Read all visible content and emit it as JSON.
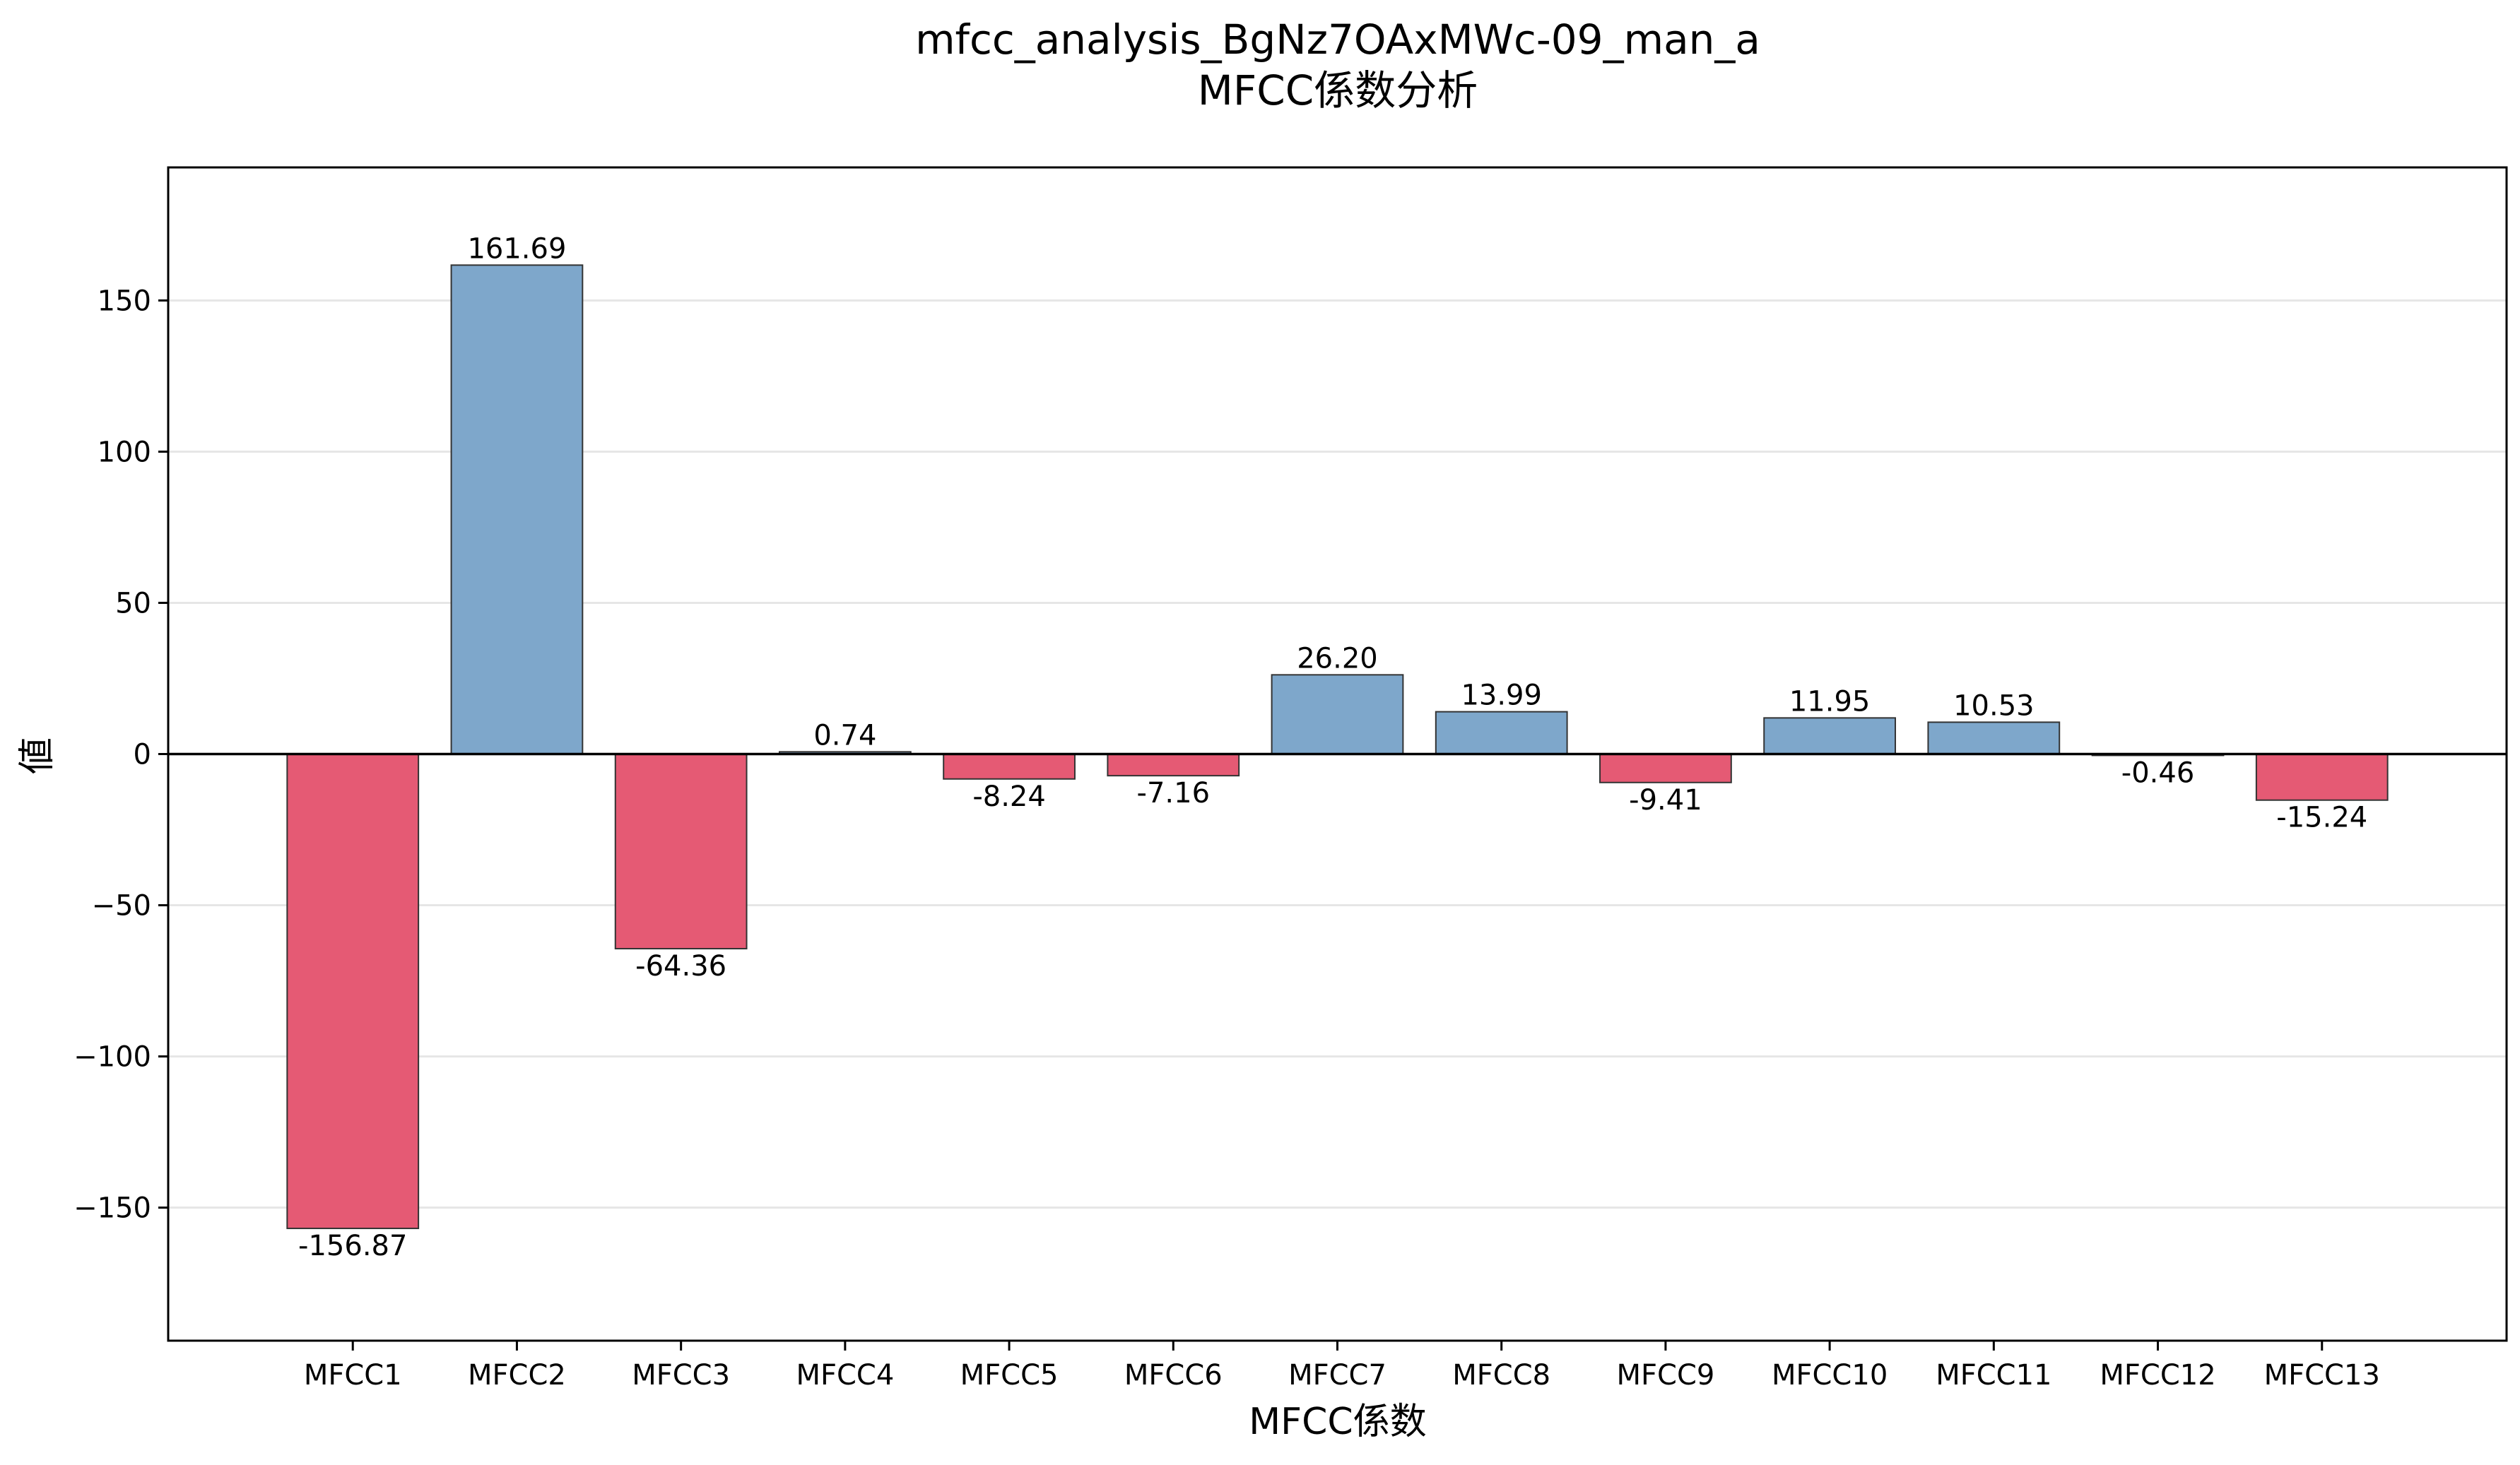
{
  "chart_data": {
    "type": "bar",
    "title": "mfcc_analysis_BgNz7OAxMWc-09_man_a",
    "subtitle": "MFCC係数分析",
    "xlabel": "MFCC係数",
    "ylabel": "値",
    "categories": [
      "MFCC1",
      "MFCC2",
      "MFCC3",
      "MFCC4",
      "MFCC5",
      "MFCC6",
      "MFCC7",
      "MFCC8",
      "MFCC9",
      "MFCC10",
      "MFCC11",
      "MFCC12",
      "MFCC13"
    ],
    "values": [
      -156.87,
      161.69,
      -64.36,
      0.74,
      -8.24,
      -7.16,
      26.2,
      13.99,
      -9.41,
      11.95,
      10.53,
      -0.46,
      -15.24
    ],
    "value_labels": [
      "-156.87",
      "161.69",
      "-64.36",
      "0.74",
      "-8.24",
      "-7.16",
      "26.20",
      "13.99",
      "-9.41",
      "11.95",
      "10.53",
      "-0.46",
      "-15.24"
    ],
    "ylim": [
      -194,
      194
    ],
    "yticks": [
      -150,
      -100,
      -50,
      0,
      50,
      100,
      150
    ],
    "ytick_labels": [
      "−150",
      "−100",
      "−50",
      "0",
      "50",
      "100",
      "150"
    ],
    "grid": "horizontal",
    "legend": "none",
    "colors": {
      "positive": "#7ea7cb",
      "negative": "#e55a74",
      "edge": "#333333"
    }
  }
}
